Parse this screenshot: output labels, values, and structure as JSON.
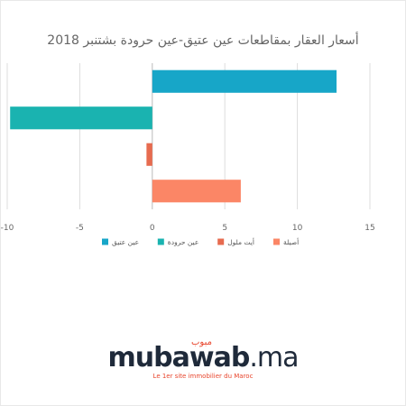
{
  "chart_data": {
    "type": "bar",
    "orientation": "horizontal",
    "title": "أسعار العقار بمقاطعات عين عتيق-عين حرودة بشتنبر 2018",
    "xlim": [
      -10,
      15
    ],
    "x_ticks": [
      "-10",
      "-5",
      "0",
      "5",
      "10",
      "15"
    ],
    "grid": true,
    "legend_position": "bottom",
    "series": [
      {
        "name": "عين عتيق",
        "value": 12.7,
        "color": "#17a6c8"
      },
      {
        "name": "عين حرودة",
        "value": -9.8,
        "color": "#1ab3b0"
      },
      {
        "name": "أيت ملول",
        "value": -0.4,
        "color": "#e76b4f"
      },
      {
        "name": "أصيلة",
        "value": 6.1,
        "color": "#fb8666"
      }
    ]
  },
  "logo": {
    "arabic": "مبوب",
    "name": "mubawab",
    "tld": ".ma",
    "tagline": "Le 1er site immobilier du Maroc"
  }
}
